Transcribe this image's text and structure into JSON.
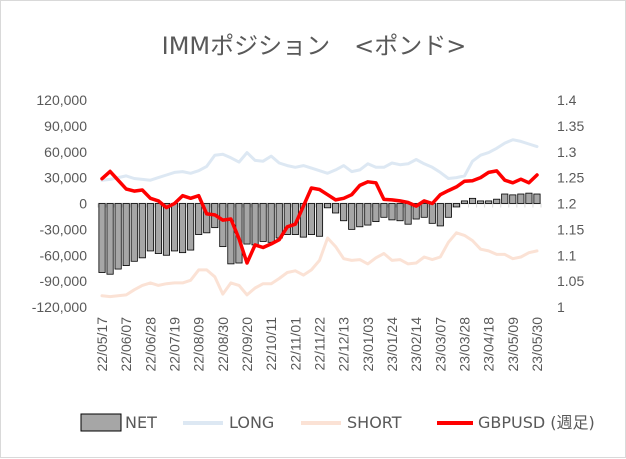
{
  "chart_data": {
    "type": "bar",
    "title": "IMMポジション　<ポンド>",
    "y_left": {
      "min": -120000,
      "max": 120000,
      "step": 30000,
      "tick_labels": [
        "-120,000",
        "-90,000",
        "-60,000",
        "-30,000",
        "0",
        "30,000",
        "60,000",
        "90,000",
        "120,000"
      ]
    },
    "y_right": {
      "min": 1,
      "max": 1.4,
      "step": 0.05,
      "tick_labels": [
        "1",
        "1.05",
        "1.1",
        "1.15",
        "1.2",
        "1.25",
        "1.3",
        "1.35",
        "1.4"
      ]
    },
    "x_tick_labels": [
      "22/05/17",
      "22/06/07",
      "22/06/28",
      "22/07/19",
      "22/08/09",
      "22/08/30",
      "22/09/20",
      "22/10/11",
      "22/11/01",
      "22/11/22",
      "22/12/13",
      "23/01/03",
      "23/01/24",
      "23/02/14",
      "23/03/07",
      "23/03/28",
      "23/04/18",
      "23/05/09",
      "23/05/30"
    ],
    "x_tick_every": 3,
    "weeks_count": 55,
    "legend": [
      "NET",
      "LONG",
      "SHORT",
      "GBPUSD (週足)"
    ],
    "colors": {
      "net": "#a6a6a6",
      "net_border": "#000000",
      "long": "#dde8f3",
      "short": "#fbe2d5",
      "gbpusd": "#ff0000",
      "axis": "#d9d9d9",
      "text": "#595959"
    },
    "series": [
      {
        "name": "NET",
        "type": "bar",
        "values": [
          -80000,
          -82000,
          -76000,
          -72000,
          -67000,
          -63000,
          -55000,
          -58000,
          -60000,
          -55000,
          -57000,
          -54000,
          -36000,
          -34000,
          -28000,
          -50000,
          -70000,
          -69000,
          -47000,
          -48000,
          -44000,
          -45000,
          -40000,
          -36000,
          -36000,
          -39000,
          -36000,
          -38000,
          -5000,
          -11000,
          -20000,
          -30000,
          -27000,
          -25000,
          -21000,
          -16000,
          -19000,
          -20000,
          -24000,
          -18000,
          -16000,
          -23000,
          -26000,
          -16000,
          -4000,
          3000,
          6000,
          3000,
          3000,
          5000,
          11000,
          10000,
          11000,
          12000,
          11000
        ]
      },
      {
        "name": "LONG",
        "type": "line",
        "values": [
          27000,
          28000,
          30000,
          32000,
          29000,
          28000,
          27000,
          30000,
          33000,
          36000,
          37000,
          35000,
          38000,
          43000,
          56000,
          57000,
          53000,
          48000,
          59000,
          50000,
          49000,
          55000,
          47000,
          44000,
          42000,
          44000,
          41000,
          38000,
          35000,
          39000,
          44000,
          37000,
          39000,
          46000,
          42000,
          42000,
          47000,
          45000,
          46000,
          51000,
          46000,
          42000,
          36000,
          29000,
          30000,
          32000,
          49000,
          56000,
          59000,
          64000,
          70000,
          74000,
          72000,
          69000,
          66000
        ]
      },
      {
        "name": "SHORT",
        "type": "line",
        "values": [
          -107000,
          -108000,
          -107000,
          -106000,
          -100000,
          -95000,
          -92000,
          -95000,
          -93000,
          -92000,
          -92000,
          -89000,
          -77000,
          -77000,
          -85000,
          -105000,
          -92000,
          -95000,
          -106000,
          -98000,
          -93000,
          -93000,
          -87000,
          -80000,
          -78000,
          -83000,
          -77000,
          -66000,
          -40000,
          -50000,
          -64000,
          -66000,
          -65000,
          -70000,
          -63000,
          -58000,
          -66000,
          -65000,
          -70000,
          -69000,
          -62000,
          -65000,
          -62000,
          -45000,
          -34000,
          -37000,
          -43000,
          -53000,
          -55000,
          -59000,
          -59000,
          -64000,
          -62000,
          -57000,
          -55000
        ]
      },
      {
        "name": "GBPUSD (週足)",
        "type": "line",
        "axis": "right",
        "values": [
          1.248,
          1.262,
          1.245,
          1.228,
          1.224,
          1.226,
          1.21,
          1.205,
          1.192,
          1.2,
          1.215,
          1.21,
          1.215,
          1.18,
          1.178,
          1.168,
          1.17,
          1.132,
          1.085,
          1.12,
          1.115,
          1.122,
          1.13,
          1.155,
          1.16,
          1.195,
          1.23,
          1.227,
          1.217,
          1.207,
          1.21,
          1.217,
          1.235,
          1.242,
          1.24,
          1.208,
          1.207,
          1.205,
          1.202,
          1.195,
          1.205,
          1.2,
          1.217,
          1.225,
          1.232,
          1.243,
          1.244,
          1.25,
          1.26,
          1.263,
          1.245,
          1.24,
          1.247,
          1.24,
          1.255
        ]
      }
    ]
  }
}
